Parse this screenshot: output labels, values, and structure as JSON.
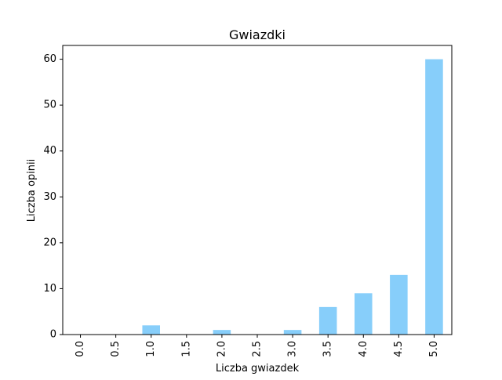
{
  "chart_data": {
    "type": "bar",
    "title": "Gwiazdki",
    "xlabel": "Liczba gwiazdek",
    "ylabel": "Liczba opinii",
    "categories": [
      "0.0",
      "0.5",
      "1.0",
      "1.5",
      "2.0",
      "2.5",
      "3.0",
      "3.5",
      "4.0",
      "4.5",
      "5.0"
    ],
    "values": [
      0,
      0,
      2,
      0,
      1,
      0,
      1,
      6,
      9,
      13,
      60
    ],
    "ylim": [
      0,
      63
    ],
    "yticks": [
      0,
      10,
      20,
      30,
      40,
      50,
      60
    ],
    "grid": false,
    "bar_color": "#87CEFA"
  }
}
